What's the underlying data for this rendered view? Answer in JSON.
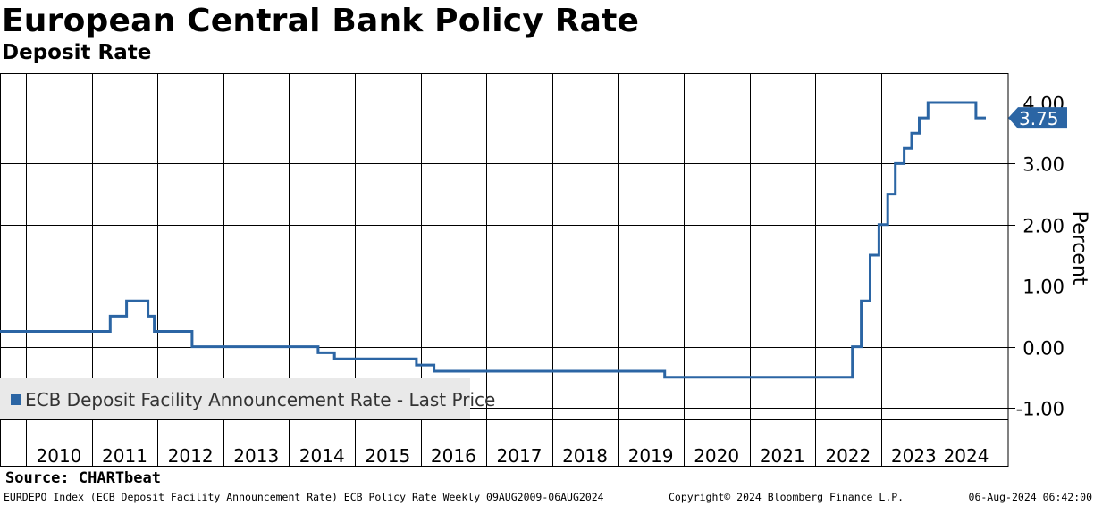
{
  "header": {
    "title": "European Central Bank Policy Rate",
    "subtitle": "Deposit Rate"
  },
  "legend": {
    "label": "ECB Deposit Facility Announcement Rate - Last Price"
  },
  "footer": {
    "source": "Source: CHARTbeat",
    "description": "EURDEPO Index (ECB Deposit Facility Announcement Rate) ECB Policy Rate  Weekly 09AUG2009-06AUG2024",
    "copyright": "Copyright© 2024 Bloomberg Finance L.P.",
    "timestamp": "06-Aug-2024 06:42:00"
  },
  "chart_data": {
    "type": "line",
    "title": "European Central Bank Policy Rate",
    "subtitle": "Deposit Rate",
    "ylabel": "Percent",
    "xlabel": "",
    "xlim": [
      "2009-08-09",
      "2024-08-06"
    ],
    "ylim": [
      -1.25,
      4.4
    ],
    "yticks": [
      {
        "value": 4.0,
        "label": "4.00"
      },
      {
        "value": 3.0,
        "label": "3.00"
      },
      {
        "value": 2.0,
        "label": "2.00"
      },
      {
        "value": 1.0,
        "label": "1.00"
      },
      {
        "value": 0.0,
        "label": "0.00"
      },
      {
        "value": -1.0,
        "label": "-1.00"
      }
    ],
    "xticks": [
      "2010",
      "2011",
      "2012",
      "2013",
      "2014",
      "2015",
      "2016",
      "2017",
      "2018",
      "2019",
      "2020",
      "2021",
      "2022",
      "2023",
      "2024"
    ],
    "grid": true,
    "last_value_label": "3.75",
    "series": [
      {
        "name": "ECB Deposit Facility Announcement Rate - Last Price",
        "color": "#2b65a4",
        "step": true,
        "points": [
          [
            "2009-08-09",
            0.25
          ],
          [
            "2011-04-13",
            0.5
          ],
          [
            "2011-07-13",
            0.75
          ],
          [
            "2011-11-09",
            0.5
          ],
          [
            "2011-12-14",
            0.25
          ],
          [
            "2012-07-11",
            0.0
          ],
          [
            "2014-06-11",
            -0.1
          ],
          [
            "2014-09-10",
            -0.2
          ],
          [
            "2015-12-09",
            -0.3
          ],
          [
            "2016-03-16",
            -0.4
          ],
          [
            "2019-09-18",
            -0.5
          ],
          [
            "2022-07-27",
            0.0
          ],
          [
            "2022-09-14",
            0.75
          ],
          [
            "2022-11-02",
            1.5
          ],
          [
            "2022-12-21",
            2.0
          ],
          [
            "2023-02-08",
            2.5
          ],
          [
            "2023-03-22",
            3.0
          ],
          [
            "2023-05-10",
            3.25
          ],
          [
            "2023-06-21",
            3.5
          ],
          [
            "2023-08-02",
            3.75
          ],
          [
            "2023-09-20",
            4.0
          ],
          [
            "2024-06-12",
            3.75
          ],
          [
            "2024-08-06",
            3.75
          ]
        ]
      }
    ]
  }
}
